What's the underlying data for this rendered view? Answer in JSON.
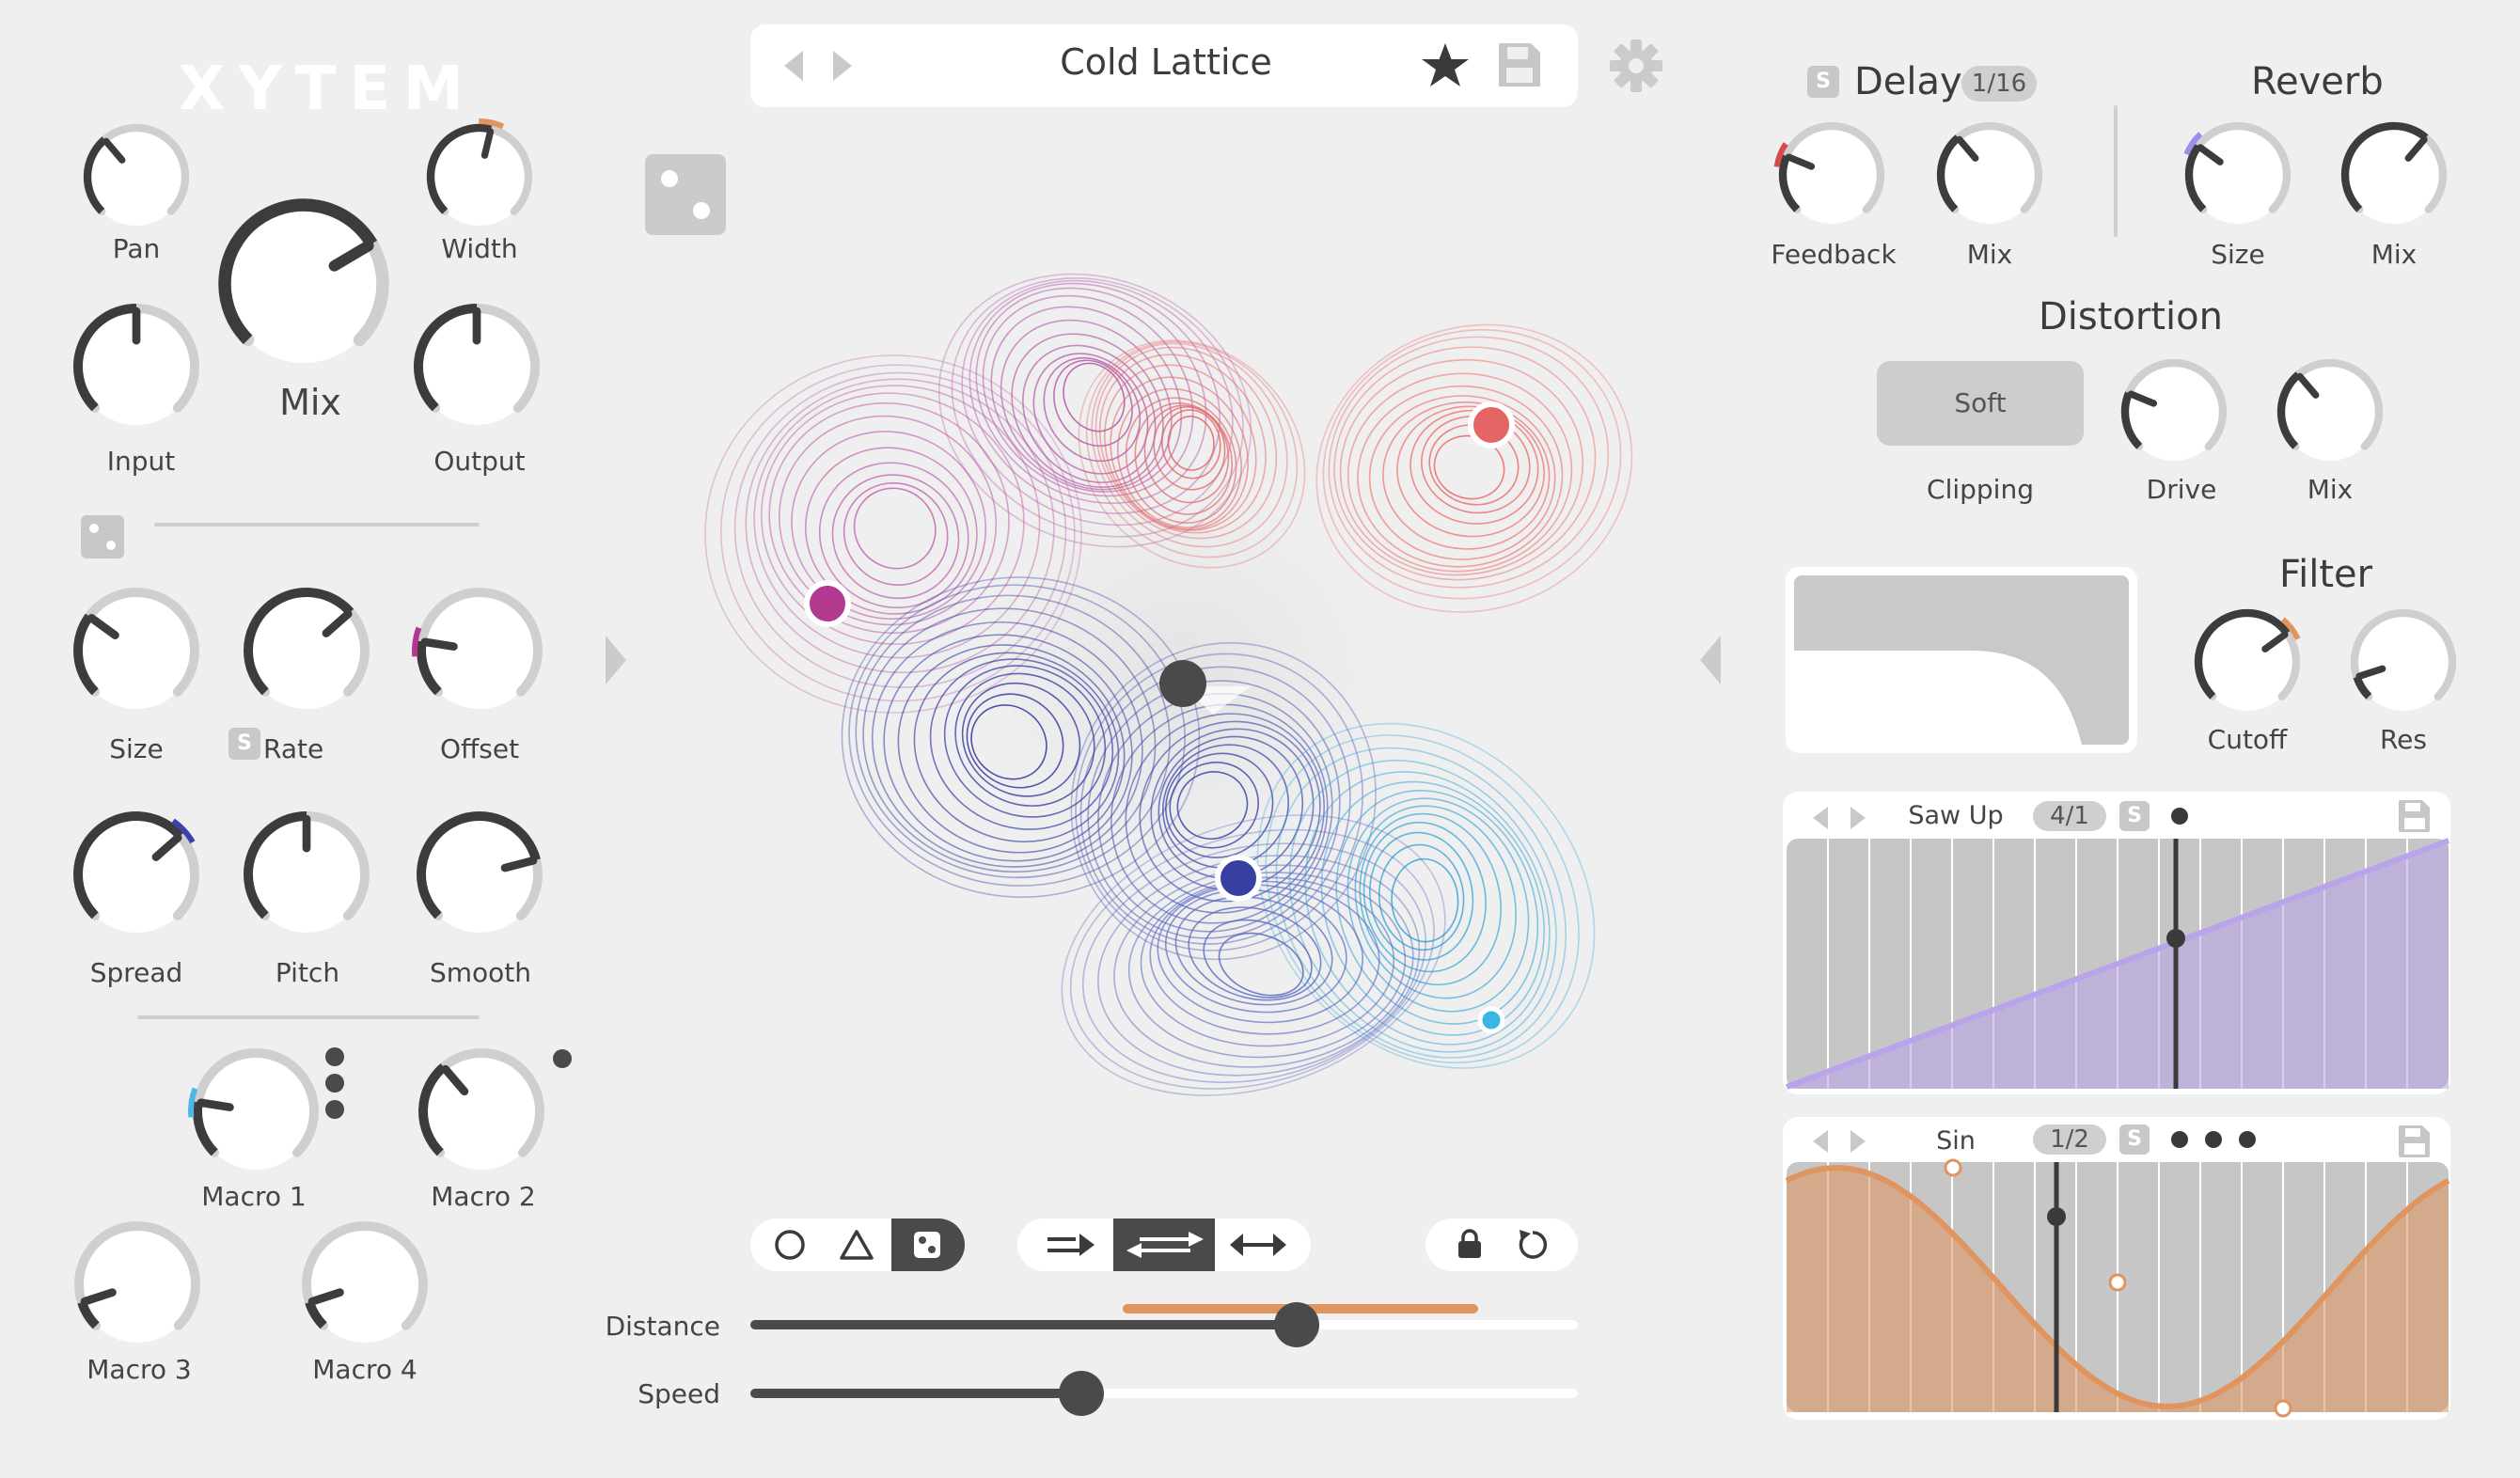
{
  "app": {
    "logo": "XYTEM"
  },
  "preset": {
    "name": "Cold Lattice",
    "prev_icon": "triangle-left-icon",
    "next_icon": "triangle-right-icon",
    "favorite_icon": "star-icon",
    "save_icon": "floppy-disk-icon",
    "settings_icon": "gear-icon"
  },
  "left": {
    "knobs_top": [
      {
        "id": "pan",
        "label": "Pan",
        "value": 0.35
      },
      {
        "id": "width",
        "label": "Width",
        "value": 0.55,
        "mod_color": "#e0945e"
      },
      {
        "id": "mix",
        "label": "Mix",
        "value": 0.72
      },
      {
        "id": "input",
        "label": "Input",
        "value": 0.5
      },
      {
        "id": "output",
        "label": "Output",
        "value": 0.5
      }
    ],
    "knobs_mid": [
      {
        "id": "size",
        "label": "Size",
        "value": 0.3
      },
      {
        "id": "rate",
        "label": "Rate",
        "value": 0.68,
        "sync": "S"
      },
      {
        "id": "offset",
        "label": "Offset",
        "value": 0.2,
        "mod_color": "#b5378f"
      },
      {
        "id": "spread",
        "label": "Spread",
        "value": 0.68,
        "mod_color": "#3b44a8"
      },
      {
        "id": "pitch",
        "label": "Pitch",
        "value": 0.5
      },
      {
        "id": "smooth",
        "label": "Smooth",
        "value": 0.78
      }
    ],
    "macros": [
      {
        "id": "macro1",
        "label": "Macro 1",
        "value": 0.2,
        "mod_color": "#4ab8e4"
      },
      {
        "id": "macro2",
        "label": "Macro 2",
        "value": 0.35
      },
      {
        "id": "macro3",
        "label": "Macro 3",
        "value": 0.1
      },
      {
        "id": "macro4",
        "label": "Macro 4",
        "value": 0.1
      }
    ]
  },
  "center": {
    "shape_buttons": [
      "circle-icon",
      "triangle-icon",
      "dice-icon"
    ],
    "direction_buttons": [
      "arrow-right-icon",
      "arrow-bidirectional-icon",
      "arrow-both-icon"
    ],
    "lock_icon": "lock-icon",
    "reset_icon": "reset-icon",
    "sliders": [
      {
        "id": "distance",
        "label": "Distance",
        "value": 0.66,
        "range": [
          0.45,
          0.88
        ],
        "range_color": "#e0945e"
      },
      {
        "id": "speed",
        "label": "Speed",
        "value": 0.4
      }
    ]
  },
  "right": {
    "delay": {
      "title": "Delay",
      "sync": "S",
      "rate": "1/16",
      "knobs": [
        {
          "id": "feedback",
          "label": "Feedback",
          "value": 0.25,
          "mod_color": "#d94b4b"
        },
        {
          "id": "delay_mix",
          "label": "Mix",
          "value": 0.35
        }
      ]
    },
    "reverb": {
      "title": "Reverb",
      "knobs": [
        {
          "id": "size",
          "label": "Size",
          "value": 0.3,
          "mod_color": "#9b8ef0"
        },
        {
          "id": "reverb_mix",
          "label": "Mix",
          "value": 0.65
        }
      ]
    },
    "distortion": {
      "title": "Distortion",
      "mode": "Soft",
      "mode_label": "Clipping",
      "knobs": [
        {
          "id": "drive",
          "label": "Drive",
          "value": 0.25
        },
        {
          "id": "dist_mix",
          "label": "Mix",
          "value": 0.35
        }
      ]
    },
    "filter": {
      "title": "Filter",
      "knobs": [
        {
          "id": "cutoff",
          "label": "Cutoff",
          "value": 0.7,
          "mod_color": "#e0945e"
        },
        {
          "id": "res",
          "label": "Res",
          "value": 0.1
        }
      ]
    },
    "lfo1": {
      "shape": "Saw Up",
      "rate": "4/1",
      "sync": "S",
      "color": "#b9a3ea"
    },
    "lfo2": {
      "shape": "Sin",
      "rate": "1/2",
      "sync": "S",
      "color": "#e0945e"
    }
  }
}
